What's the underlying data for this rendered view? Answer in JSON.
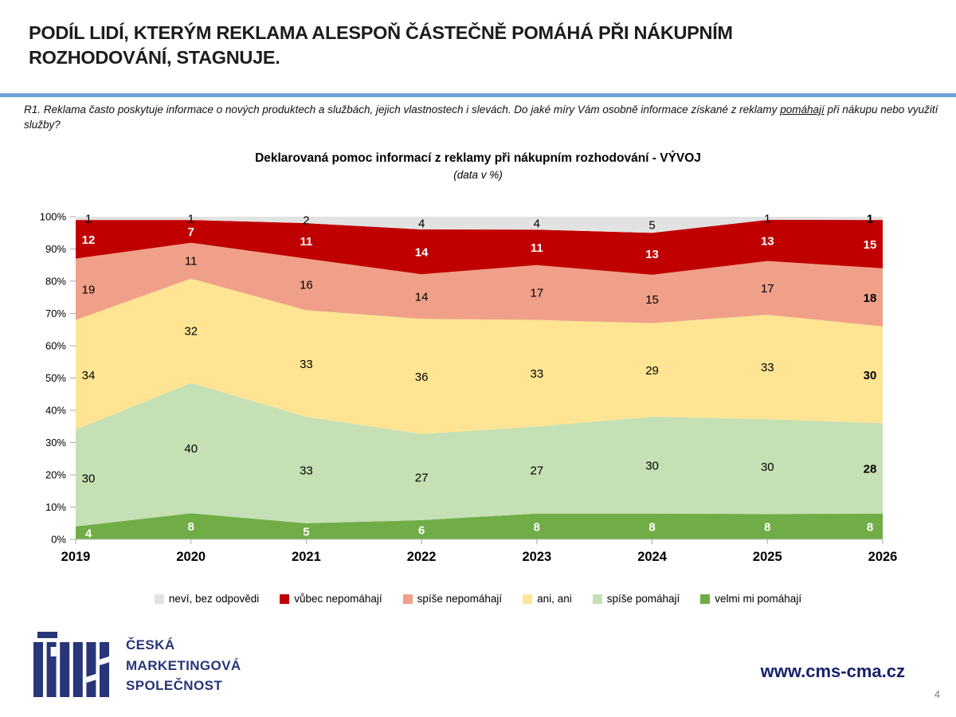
{
  "header": {
    "title": "PODÍL LIDÍ, KTERÝM REKLAMA ALESPOŇ ČÁSTEČNĚ POMÁHÁ PŘI NÁKUPNÍM ROZHODOVÁNÍ, STAGNUJE.",
    "divider_color": "#6CA2D8"
  },
  "question": {
    "part1": "R1. Reklama často poskytuje informace o nových produktech a službách, jejich vlastnostech i slevách. Do jaké míry Vám osobně informace získané z reklamy ",
    "underlined": "pomáhají",
    "part2": " při nákupu nebo využití služby?"
  },
  "chart_data": {
    "type": "area",
    "stacking": "percent",
    "title": "Deklarovaná pomoc informací z reklamy při nákupním rozhodování - VÝVOJ",
    "subtitle": "(data v %)",
    "categories": [
      "2019",
      "2020",
      "2021",
      "2022",
      "2023",
      "2024",
      "2025",
      "2026"
    ],
    "series": [
      {
        "id": "velmi-mi-pomahaji",
        "name": "velmi mi pomáhají",
        "color": "#70AD47",
        "label_color": "#FFFFFF",
        "values": [
          4,
          8,
          5,
          6,
          8,
          8,
          8,
          8
        ]
      },
      {
        "id": "spise-pomahaji",
        "name": "spíše pomáhají",
        "color": "#C5E0B4",
        "label_color": "#000000",
        "values": [
          30,
          40,
          33,
          27,
          27,
          30,
          30,
          28
        ]
      },
      {
        "id": "ani-ani",
        "name": "ani, ani",
        "color": "#FFE593",
        "label_color": "#000000",
        "values": [
          34,
          32,
          33,
          36,
          33,
          29,
          33,
          30
        ]
      },
      {
        "id": "spise-nepomahaji",
        "name": "spíše nepomáhají",
        "color": "#F0A088",
        "label_color": "#000000",
        "values": [
          19,
          11,
          16,
          14,
          17,
          15,
          17,
          18
        ]
      },
      {
        "id": "vubec-nepomahaji",
        "name": "vůbec nepomáhají",
        "color": "#C00000",
        "label_color": "#FFFFFF",
        "values": [
          12,
          7,
          11,
          14,
          11,
          13,
          13,
          15
        ]
      },
      {
        "id": "nevi-bez-odpovedi",
        "name": "neví, bez odpovědi",
        "color": "#E2E2E2",
        "label_color": "#000000",
        "values": [
          1,
          1,
          2,
          4,
          4,
          5,
          1,
          1
        ]
      }
    ],
    "y_ticks": [
      "0%",
      "10%",
      "20%",
      "30%",
      "40%",
      "50%",
      "60%",
      "70%",
      "80%",
      "90%",
      "100%"
    ],
    "ylim": [
      0,
      100
    ],
    "grid": false,
    "legend_position": "bottom",
    "legend_order_reversed": true
  },
  "footer": {
    "org_lines": [
      "ČESKÁ",
      "MARKETINGOVÁ",
      "SPOLEČNOST"
    ],
    "website": "www.cms-cma.cz",
    "page_number": "4",
    "logo_color": "#283578"
  }
}
